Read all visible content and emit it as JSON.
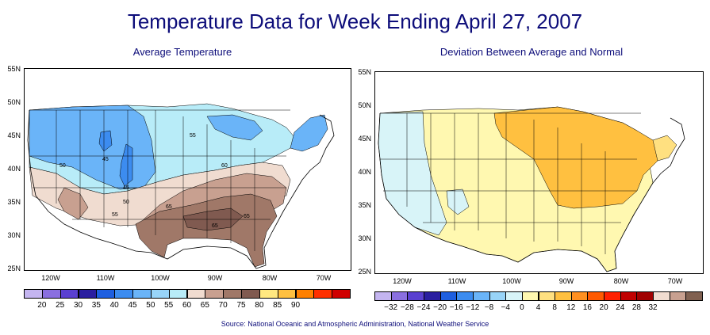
{
  "title": "Temperature Data for Week Ending April 27, 2007",
  "maps": [
    {
      "subtitle": "Average Temperature",
      "lat_labels": [
        "55N",
        "50N",
        "45N",
        "40N",
        "35N",
        "30N",
        "25N"
      ],
      "lon_labels": [
        "120W",
        "110W",
        "100W",
        "90W",
        "80W",
        "70W"
      ],
      "contour_labels": [
        "50",
        "45",
        "45",
        "50",
        "55",
        "55",
        "60",
        "65",
        "65",
        "65"
      ],
      "legend_colors": [
        "#c4b5f0",
        "#8a6fe0",
        "#5a40d0",
        "#2a1ea0",
        "#1e5fe0",
        "#3c8cf0",
        "#6ab4f8",
        "#98d4f8",
        "#b8ecf8",
        "#f0dcd0",
        "#c8a090",
        "#a07868",
        "#805a50",
        "#ffe880",
        "#ffc040",
        "#ff8000",
        "#ff3000",
        "#d00000"
      ],
      "legend_labels": [
        "20",
        "25",
        "30",
        "35",
        "40",
        "45",
        "50",
        "55",
        "60",
        "65",
        "70",
        "75",
        "80",
        "85",
        "90"
      ]
    },
    {
      "subtitle": "Deviation Between Average and Normal",
      "lat_labels": [
        "55N",
        "50N",
        "45N",
        "40N",
        "35N",
        "30N",
        "25N"
      ],
      "lon_labels": [
        "120W",
        "110W",
        "100W",
        "90W",
        "80W",
        "70W"
      ],
      "legend_colors": [
        "#c4b5f0",
        "#8a6fe0",
        "#5a40d0",
        "#2a1ea0",
        "#1e5fe0",
        "#3c8cf0",
        "#6ab4f8",
        "#98d4f8",
        "#d8f4f8",
        "#fff8b0",
        "#ffe080",
        "#ffc040",
        "#ff9020",
        "#ff5a00",
        "#ff2000",
        "#c00000",
        "#a00000",
        "#f0dcd0",
        "#c8a090",
        "#806050"
      ],
      "legend_labels": [
        "−32",
        "−28",
        "−24",
        "−20",
        "−16",
        "−12",
        "−8",
        "−4",
        "0",
        "4",
        "8",
        "12",
        "16",
        "20",
        "24",
        "28",
        "32"
      ]
    }
  ],
  "source": "Source:  National Oceanic and Atmospheric Administration, National Weather Service"
}
